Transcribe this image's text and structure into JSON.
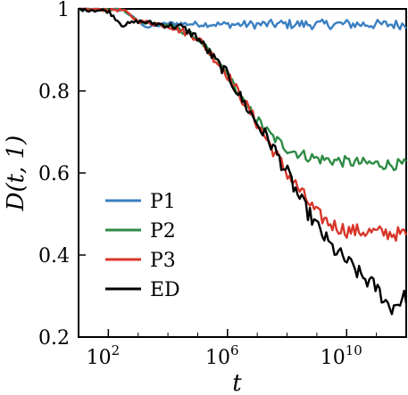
{
  "chart_data": {
    "type": "line",
    "xlabel": "t",
    "ylabel": "D(t, 1)",
    "x_scale": "log10",
    "xlim": [
      10,
      1000000000000
    ],
    "ylim": [
      0.2,
      1.0
    ],
    "xticks": [
      {
        "value": 100,
        "base": "10",
        "exp": "2"
      },
      {
        "value": 1000000,
        "base": "10",
        "exp": "6"
      },
      {
        "value": 10000000000,
        "base": "10",
        "exp": "10"
      }
    ],
    "yticks": [
      {
        "value": 0.2,
        "label": "0.2"
      },
      {
        "value": 0.4,
        "label": "0.4"
      },
      {
        "value": 0.6,
        "label": "0.6"
      },
      {
        "value": 0.8,
        "label": "0.8"
      },
      {
        "value": 1.0,
        "label": "1"
      }
    ],
    "legend": {
      "position": "bottom-left"
    },
    "series": [
      {
        "name": "P1",
        "color": "#3a7fc1",
        "x": [
          10,
          300,
          1000,
          2000,
          5000,
          10000,
          100000,
          1000000,
          10000000,
          100000000,
          1000000000,
          10000000000,
          100000000000,
          1000000000000
        ],
        "y": [
          1.0,
          0.998,
          0.97,
          0.955,
          0.96,
          0.965,
          0.963,
          0.962,
          0.962,
          0.963,
          0.962,
          0.963,
          0.962,
          0.962
        ]
      },
      {
        "name": "P2",
        "color": "#2e8b45",
        "x": [
          10,
          300,
          1000,
          10000,
          100000,
          1000000,
          3000000,
          10000000,
          30000000,
          100000000,
          300000000,
          1000000000,
          10000000000,
          100000000000,
          1000000000000
        ],
        "y": [
          1.0,
          0.998,
          0.97,
          0.96,
          0.93,
          0.84,
          0.78,
          0.73,
          0.69,
          0.66,
          0.645,
          0.635,
          0.627,
          0.622,
          0.62
        ]
      },
      {
        "name": "P3",
        "color": "#d8362a",
        "x": [
          10,
          300,
          1000,
          10000,
          100000,
          1000000,
          10000000,
          100000000,
          1000000000,
          3000000000,
          10000000000,
          100000000000,
          1000000000000
        ],
        "y": [
          1.0,
          0.998,
          0.97,
          0.96,
          0.93,
          0.84,
          0.72,
          0.6,
          0.5,
          0.475,
          0.46,
          0.455,
          0.45
        ]
      },
      {
        "name": "ED",
        "color": "#000000",
        "x": [
          10,
          100,
          300,
          1000,
          3000,
          10000,
          30000,
          100000,
          300000,
          1000000,
          3000000,
          10000000,
          30000000,
          100000000,
          300000000,
          1000000000,
          3000000000,
          10000000000,
          30000000000,
          100000000000,
          300000000000,
          1000000000000
        ],
        "y": [
          1.0,
          0.995,
          0.96,
          0.97,
          0.965,
          0.96,
          0.955,
          0.93,
          0.885,
          0.84,
          0.78,
          0.72,
          0.67,
          0.6,
          0.53,
          0.47,
          0.42,
          0.385,
          0.35,
          0.32,
          0.27,
          0.3
        ]
      }
    ]
  }
}
